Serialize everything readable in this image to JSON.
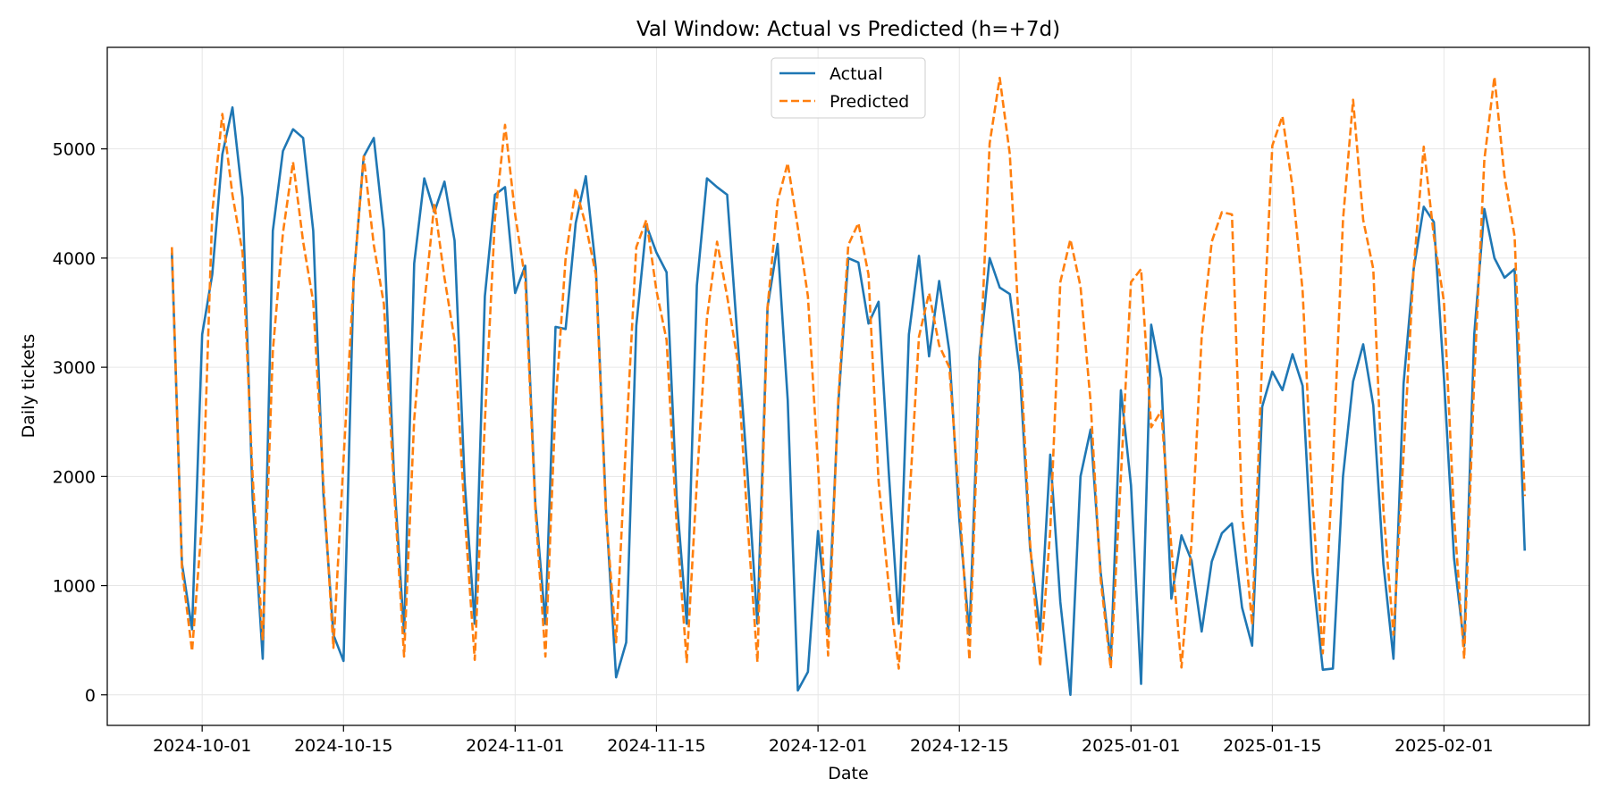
{
  "chart_data": {
    "type": "line",
    "title": "Val Window: Actual vs Predicted (h=+7d)",
    "xlabel": "Date",
    "ylabel": "Daily tickets",
    "x_start": "2024-09-28",
    "x_tick_labels": [
      "2024-10-01",
      "2024-10-15",
      "2024-11-01",
      "2024-11-15",
      "2024-12-01",
      "2024-12-15",
      "2025-01-01",
      "2025-01-15",
      "2025-02-01"
    ],
    "y_ticks": [
      0,
      1000,
      2000,
      3000,
      4000,
      5000
    ],
    "ylim": [
      -280,
      5930
    ],
    "grid": true,
    "legend_position": "upper center",
    "series": [
      {
        "name": "Actual",
        "color": "#1f77b4",
        "style": "solid",
        "values": [
          4050,
          1200,
          600,
          3300,
          3850,
          4950,
          5380,
          4550,
          1800,
          330,
          4250,
          4980,
          5180,
          5100,
          4250,
          1850,
          550,
          310,
          3800,
          4930,
          5100,
          4250,
          2000,
          560,
          3950,
          4730,
          4420,
          4700,
          4160,
          1950,
          650,
          3650,
          4580,
          4650,
          3680,
          3930,
          1750,
          650,
          3370,
          3350,
          4320,
          4750,
          3900,
          1700,
          160,
          480,
          3380,
          4300,
          4050,
          3870,
          1800,
          650,
          3750,
          4730,
          4650,
          4580,
          3300,
          2050,
          650,
          3550,
          4130,
          2700,
          40,
          210,
          1500,
          600,
          2650,
          4000,
          3960,
          3400,
          3600,
          2050,
          650,
          3300,
          4020,
          3100,
          3790,
          3150,
          1600,
          550,
          3100,
          4000,
          3730,
          3670,
          2950,
          1350,
          580,
          2200,
          850,
          0,
          2000,
          2430,
          1120,
          300,
          2790,
          1920,
          100,
          3390,
          2900,
          880,
          1460,
          1230,
          580,
          1220,
          1480,
          1570,
          800,
          450,
          2640,
          2960,
          2790,
          3120,
          2830,
          1120,
          230,
          240,
          2000,
          2870,
          3210,
          2650,
          1200,
          330,
          2850,
          3900,
          4470,
          4330,
          2900,
          1250,
          450,
          3300,
          4450,
          4000,
          3820,
          3900,
          1320
        ]
      },
      {
        "name": "Predicted",
        "color": "#ff7f0e",
        "style": "dashed",
        "values": [
          4100,
          1150,
          400,
          1600,
          4420,
          5320,
          4580,
          4050,
          2000,
          500,
          3150,
          4230,
          4880,
          4150,
          3600,
          1950,
          430,
          2150,
          3800,
          4930,
          4120,
          3580,
          1900,
          350,
          2520,
          3580,
          4500,
          3820,
          3250,
          1650,
          320,
          2500,
          4360,
          5220,
          4400,
          3800,
          1700,
          350,
          2650,
          4000,
          4640,
          4300,
          3850,
          1650,
          480,
          2350,
          4100,
          4350,
          3700,
          3250,
          1550,
          300,
          1950,
          3450,
          4150,
          3650,
          3080,
          1600,
          300,
          3550,
          4520,
          4870,
          4280,
          3650,
          2100,
          360,
          2700,
          4120,
          4320,
          3850,
          1950,
          1000,
          240,
          1700,
          3280,
          3680,
          3200,
          3000,
          1780,
          320,
          2900,
          5050,
          5650,
          4950,
          3200,
          1400,
          260,
          1500,
          3780,
          4170,
          3740,
          2680,
          1050,
          240,
          2000,
          3780,
          3900,
          2450,
          2600,
          1350,
          250,
          1400,
          3280,
          4150,
          4420,
          4400,
          1680,
          640,
          3100,
          5030,
          5300,
          4650,
          3700,
          1750,
          380,
          2100,
          4350,
          5450,
          4350,
          3900,
          1700,
          550,
          2200,
          3900,
          5020,
          4200,
          3600,
          1640,
          330,
          2900,
          4900,
          5660,
          4750,
          4200,
          1820
        ]
      }
    ]
  }
}
